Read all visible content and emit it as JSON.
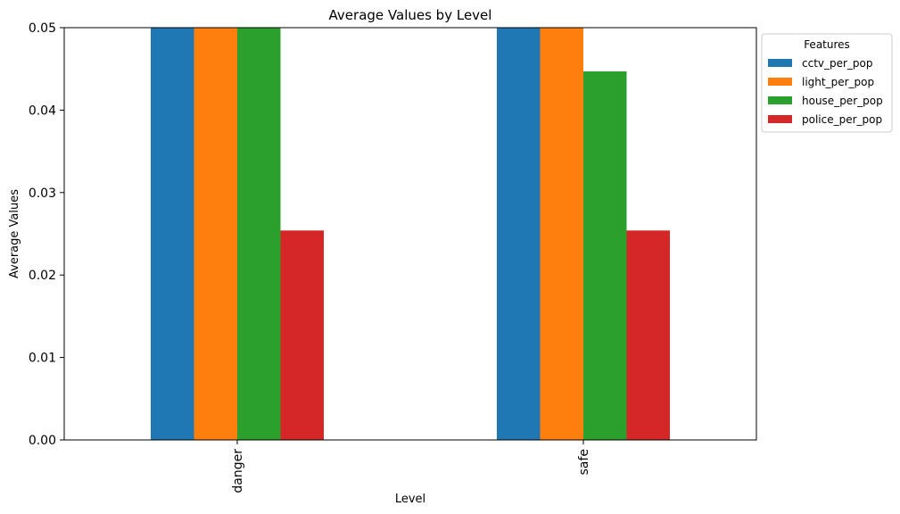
{
  "chart_data": {
    "type": "bar",
    "title": "Average Values by Level",
    "xlabel": "Level",
    "ylabel": "Average Values",
    "categories": [
      "danger",
      "safe"
    ],
    "ylim": [
      0,
      0.05
    ],
    "yticks": [
      "0.00",
      "0.01",
      "0.02",
      "0.03",
      "0.04",
      "0.05"
    ],
    "grid": false,
    "legend": {
      "title": "Features",
      "placement": "outside-upper-right"
    },
    "series": [
      {
        "name": "cctv_per_pop",
        "color": "#1f77b4",
        "values": [
          0.05,
          0.05
        ]
      },
      {
        "name": "light_per_pop",
        "color": "#ff7f0e",
        "values": [
          0.05,
          0.05
        ]
      },
      {
        "name": "house_per_pop",
        "color": "#2ca02c",
        "values": [
          0.05,
          0.0447
        ]
      },
      {
        "name": "police_per_pop",
        "color": "#d62728",
        "values": [
          0.0254,
          0.0254
        ]
      }
    ]
  }
}
